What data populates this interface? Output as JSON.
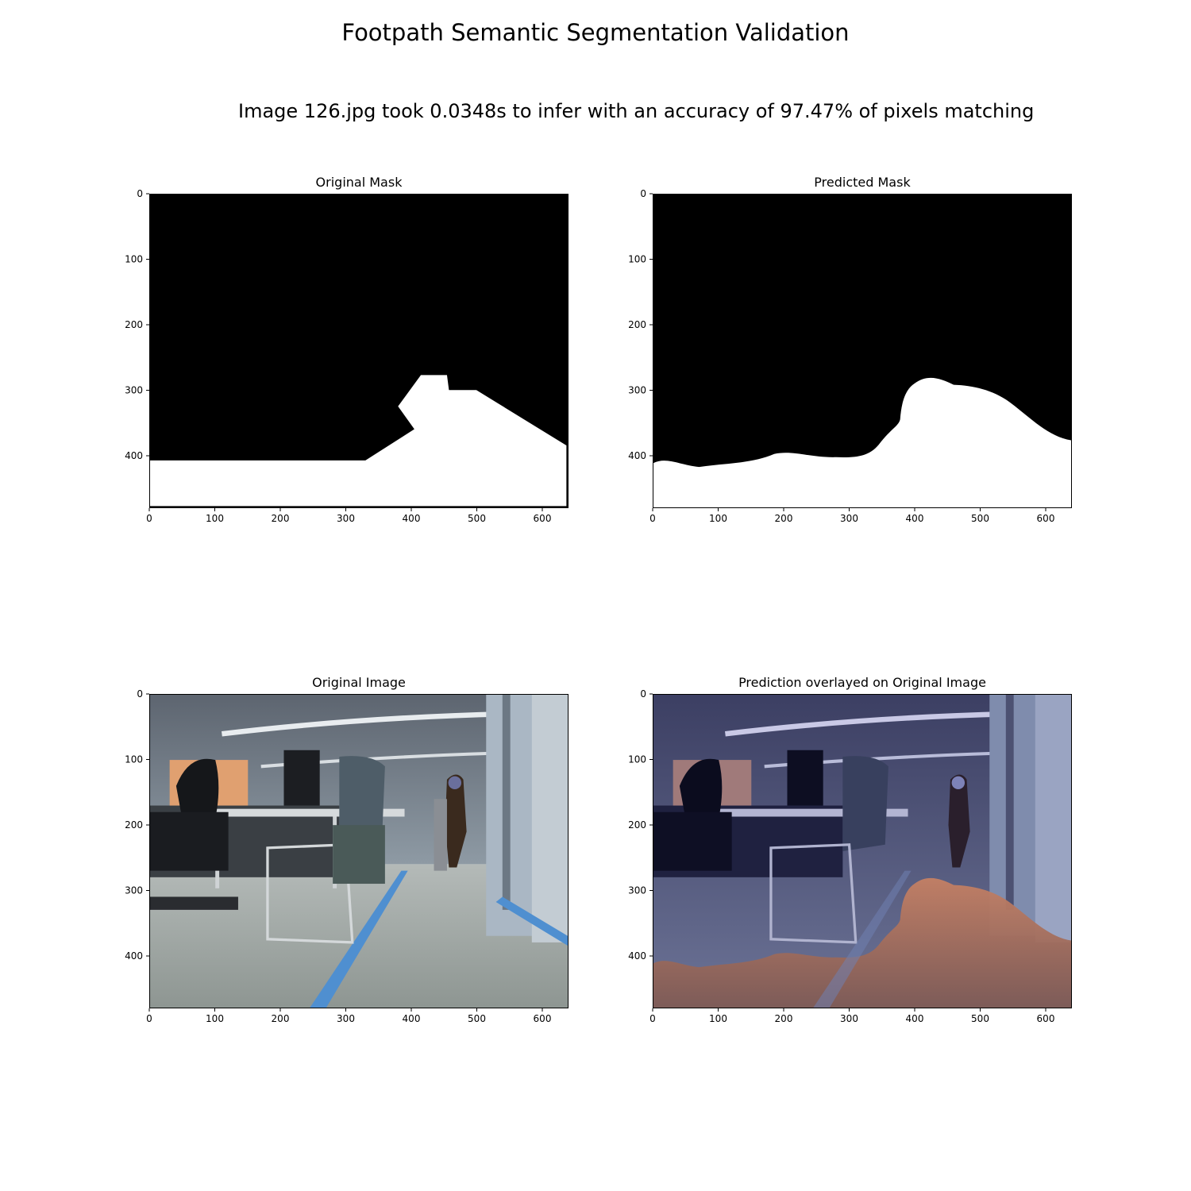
{
  "figure": {
    "title": "Footpath Semantic Segmentation Validation",
    "info_text": "Image 126.jpg took 0.0348s to infer with an accuracy of 97.47% of pixels matching"
  },
  "panels": {
    "original_mask": {
      "title": "Original Mask"
    },
    "predicted_mask": {
      "title": "Predicted Mask"
    },
    "original_image": {
      "title": "Original Image"
    },
    "overlay": {
      "title": "Prediction overlayed on Original Image"
    }
  },
  "axes": {
    "x_ticks": [
      "0",
      "100",
      "200",
      "300",
      "400",
      "500",
      "600"
    ],
    "y_ticks": [
      "0",
      "100",
      "200",
      "300",
      "400"
    ],
    "xlim": [
      0,
      640
    ],
    "ylim": [
      480,
      0
    ]
  },
  "colors": {
    "mask_background": "#000000",
    "mask_foreground": "#ffffff",
    "overlay_footpath": "#c07a5e",
    "overlay_background": "#3a3f66",
    "tape": "#4f8fd0"
  }
}
